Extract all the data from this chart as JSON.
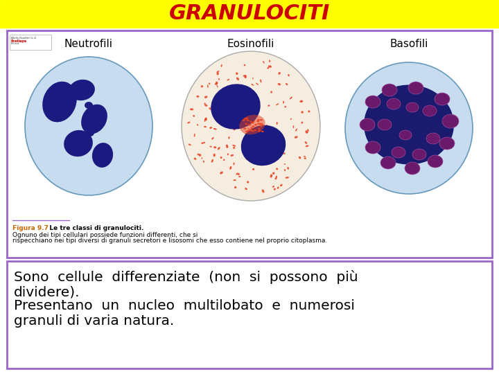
{
  "title": "GRANULOCITI",
  "title_color": "#CC0000",
  "title_bg": "#FFFF00",
  "title_fontsize": 22,
  "border_color": "#9966CC",
  "text_line1": "Sono  cellule  differenziate  (non  si  possono  più",
  "text_line2": "dividere).",
  "text_line3": "Presentano  un  nucleo  multilobato  e  numerosi",
  "text_line4": "granuli di varia natura.",
  "text_fontsize": 14.5,
  "text_color": "#000000",
  "cell_labels": [
    "Neutrofili",
    "Eosinofili",
    "Basofili"
  ],
  "fig_caption_label": "Figura 9.7",
  "fig_caption_bold": "   Le tre classi di granulociti.",
  "fig_caption_text": " Ognuno dei tipi cellulari possiede funzioni differenti, che si rispecchiano nei tipi diversi di granuli secretori e lisosomi che esso contiene nel proprio citoplasma.",
  "caption_color_label": "#CC6600",
  "caption_fontsize": 6.5,
  "neutrofili_cell_color": "#B8D8E8",
  "eosinofili_cell_color": "#F5DEB3",
  "basofili_cell_color": "#B8D8E8",
  "nucleus_color": "#1A1A80",
  "basofili_nucleus_color": "#1A1A6E",
  "basofili_granule_color": "#6B1A6B"
}
